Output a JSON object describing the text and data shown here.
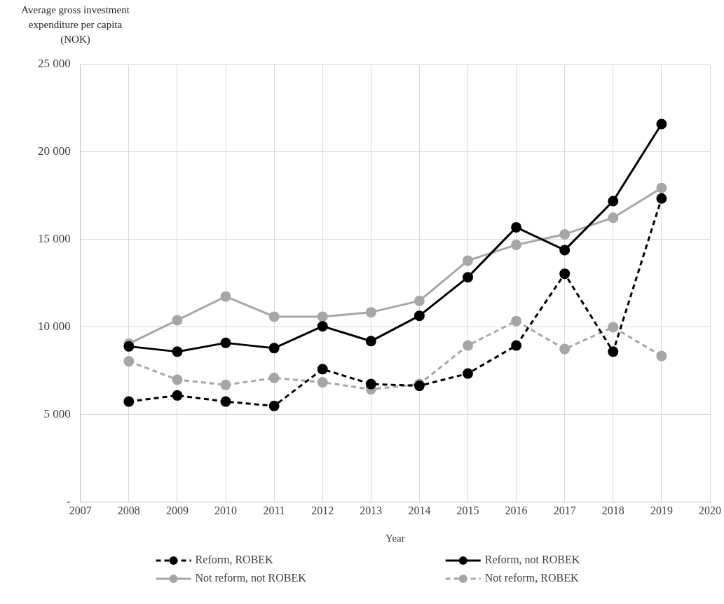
{
  "chart_data": {
    "type": "line",
    "ylabel": "Average gross investment expenditure per capita (NOK)",
    "xlabel": "Year",
    "x": [
      2008,
      2009,
      2010,
      2011,
      2012,
      2013,
      2014,
      2015,
      2016,
      2017,
      2018,
      2019
    ],
    "series": [
      {
        "name": "Reform, ROBEK",
        "color": "#000000",
        "line_style": "dashed",
        "values": [
          5750,
          6100,
          5750,
          5500,
          7600,
          6750,
          6650,
          7350,
          8950,
          13050,
          8600,
          17350
        ]
      },
      {
        "name": "Reform, not ROBEK",
        "color": "#000000",
        "line_style": "solid",
        "values": [
          8900,
          8600,
          9100,
          8800,
          10050,
          9200,
          10650,
          12850,
          15700,
          14400,
          17200,
          21600
        ]
      },
      {
        "name": "Not reform, not ROBEK",
        "color": "#a6a6a6",
        "line_style": "solid",
        "values": [
          9050,
          10400,
          11750,
          10600,
          10600,
          10850,
          11500,
          13800,
          14700,
          15300,
          16250,
          17950
        ]
      },
      {
        "name": "Not reform, ROBEK",
        "color": "#a6a6a6",
        "line_style": "dashed",
        "values": [
          8050,
          7000,
          6700,
          7100,
          6850,
          6450,
          6750,
          8950,
          10350,
          8750,
          10000,
          8350
        ]
      }
    ],
    "xlim": [
      2007,
      2020
    ],
    "xticks": [
      2007,
      2008,
      2009,
      2010,
      2011,
      2012,
      2013,
      2014,
      2015,
      2016,
      2017,
      2018,
      2019,
      2020
    ],
    "ylim": [
      0,
      25000
    ],
    "yticks": [
      {
        "value": 0,
        "label": "-"
      },
      {
        "value": 5000,
        "label": "5 000"
      },
      {
        "value": 10000,
        "label": "10 000"
      },
      {
        "value": 15000,
        "label": "15 000"
      },
      {
        "value": 20000,
        "label": "20 000"
      },
      {
        "value": 25000,
        "label": "25 000"
      }
    ],
    "grid": true,
    "legend": "bottom",
    "marker": "circle"
  }
}
